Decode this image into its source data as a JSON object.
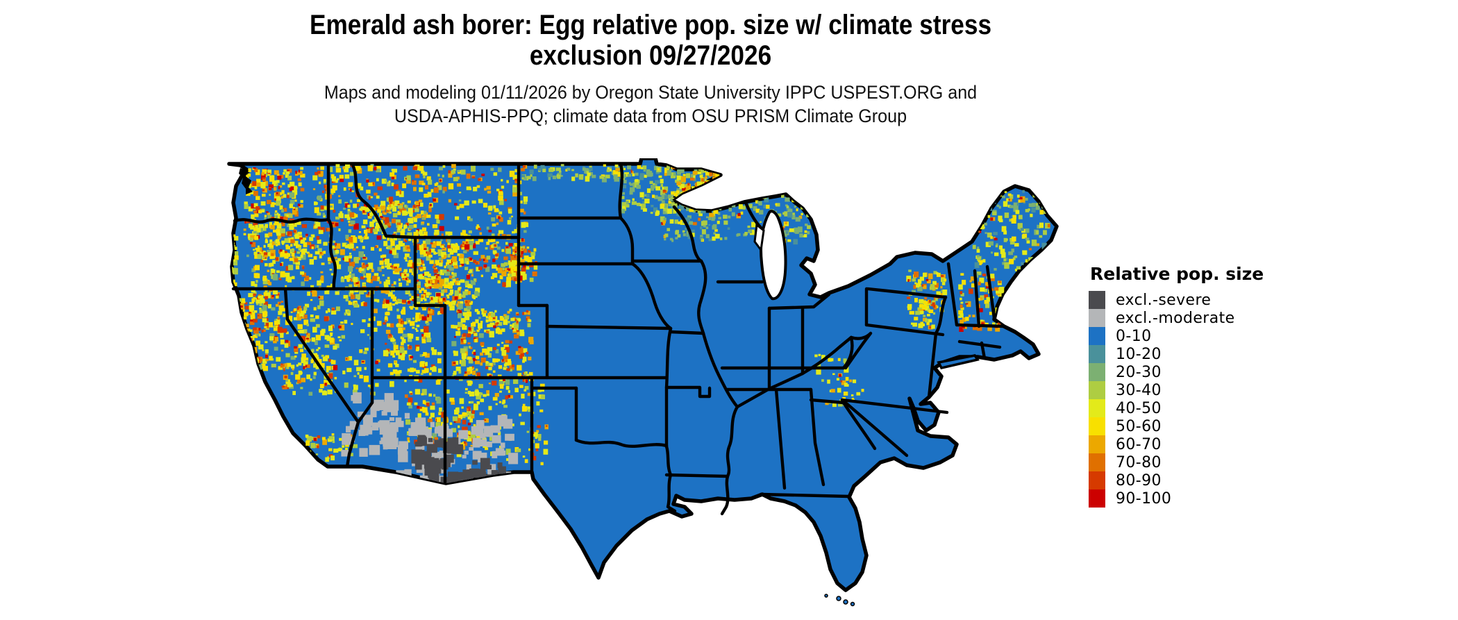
{
  "title": {
    "line1": "Emerald ash borer: Egg relative pop. size w/ climate stress",
    "line2": "exclusion 09/27/2026"
  },
  "subtitle": {
    "line1": "Maps and modeling 01/11/2026 by Oregon State University IPPC USPEST.ORG and",
    "line2": "USDA-APHIS-PPQ; climate data from OSU PRISM Climate Group"
  },
  "legend": {
    "title": "Relative pop. size",
    "items": [
      {
        "label": "excl.-severe",
        "color": "#4a4a4e"
      },
      {
        "label": "excl.-moderate",
        "color": "#b4b6b8"
      },
      {
        "label": "0-10",
        "color": "#1d72c4"
      },
      {
        "label": "10-20",
        "color": "#4a919b"
      },
      {
        "label": "20-30",
        "color": "#7cb072"
      },
      {
        "label": "30-40",
        "color": "#aecd42"
      },
      {
        "label": "40-50",
        "color": "#e3ea1a"
      },
      {
        "label": "50-60",
        "color": "#f8e000"
      },
      {
        "label": "60-70",
        "color": "#eca800"
      },
      {
        "label": "70-80",
        "color": "#e07000"
      },
      {
        "label": "80-90",
        "color": "#d63a00"
      },
      {
        "label": "90-100",
        "color": "#cc0000"
      }
    ]
  },
  "chart_data": {
    "type": "heatmap",
    "title": "Emerald ash borer: Egg relative pop. size w/ climate stress exclusion 09/27/2026",
    "subtitle": "Maps and modeling 01/11/2026 by Oregon State University IPPC USPEST.ORG and USDA-APHIS-PPQ; climate data from OSU PRISM Climate Group",
    "legend_title": "Relative pop. size",
    "legend_position": "right",
    "categories": [
      "excl.-severe",
      "excl.-moderate",
      "0-10",
      "10-20",
      "20-30",
      "30-40",
      "40-50",
      "50-60",
      "60-70",
      "70-80",
      "80-90",
      "90-100"
    ],
    "map_region": "contiguous United States",
    "dominant_class": "0-10",
    "notable_features": [
      "Most of the country mapped as 0-10 (blue)",
      "High values 40-100 (yellow/orange/red) across western mountain ranges: Cascades, Sierra Nevada, Rockies of ID/MT/WY/UT/CO, Mogollon Rim AZ, Black Hills SD",
      "Moderate 10-40 (teal/green) band across northern Minnesota, Wisconsin, Michigan UP, Adirondacks, northern New England and Maine",
      "Climate-stress exclusion zones (gray) in southern Arizona and southeastern California deserts",
      "Great Lakes and ocean shown as white background"
    ]
  },
  "map": {
    "background": "#ffffff",
    "base_color": "#1d72c4",
    "border_color": "#000000",
    "palette": {
      "teal": "#4a919b",
      "green": "#7cb072",
      "ygreen": "#aecd42",
      "yellow": "#e3ea1a",
      "gold": "#f8e000",
      "amber": "#eca800",
      "orange": "#e07000",
      "rorange": "#d63a00",
      "red": "#cc0000",
      "gray_dark": "#4a4a4e",
      "gray_light": "#b4b6b8"
    }
  }
}
